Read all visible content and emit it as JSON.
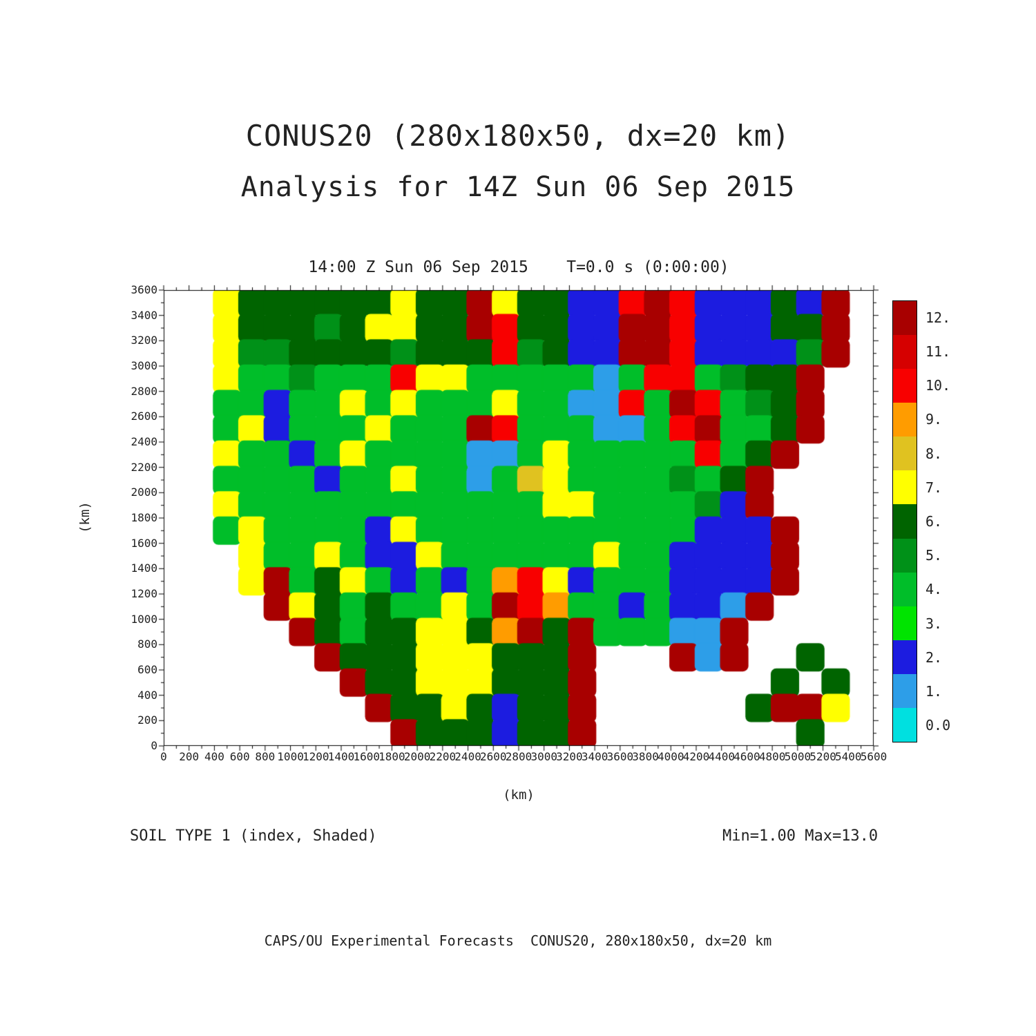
{
  "header": {
    "title_line1": "CONUS20 (280x180x50, dx=20 km)",
    "title_line2": "Analysis for 14Z Sun 06 Sep 2015"
  },
  "plot": {
    "title": "14:00 Z Sun 06 Sep 2015    T=0.0 s (0:00:00)",
    "xlabel": "(km)",
    "ylabel": "(km)",
    "x_ticks": [
      0,
      200,
      400,
      600,
      800,
      1000,
      1200,
      1400,
      1600,
      1800,
      2000,
      2200,
      2400,
      2600,
      2800,
      3000,
      3200,
      3400,
      3600,
      3800,
      4000,
      4200,
      4400,
      4600,
      4800,
      5000,
      5200,
      5400,
      5600
    ],
    "y_ticks": [
      0,
      200,
      400,
      600,
      800,
      1000,
      1200,
      1400,
      1600,
      1800,
      2000,
      2200,
      2400,
      2600,
      2800,
      3000,
      3200,
      3400,
      3600
    ]
  },
  "annotations": {
    "field_label": "SOIL TYPE 1 (index, Shaded)",
    "minmax": "Min=1.00 Max=13.0",
    "footer": "CAPS/OU Experimental Forecasts  CONUS20, 280x180x50, dx=20 km"
  },
  "chart_data": {
    "type": "heatmap",
    "title": "14:00 Z Sun 06 Sep 2015    T=0.0 s (0:00:00)",
    "field": "SOIL TYPE 1 (index, Shaded)",
    "xlabel": "(km)",
    "ylabel": "(km)",
    "xlim": [
      0,
      5600
    ],
    "ylim": [
      0,
      3600
    ],
    "min": 1.0,
    "max": 13.0,
    "levels": [
      0,
      1,
      2,
      3,
      4,
      5,
      6,
      7,
      8,
      9,
      10,
      11,
      12,
      13
    ],
    "colorbar_labels": [
      "12.",
      "11.",
      "10.",
      "9.",
      "8.",
      "7.",
      "6.",
      "5.",
      "4.",
      "3.",
      "2.",
      "1.",
      "0.0"
    ],
    "palette": [
      "#00E0E0",
      "#2D9EE8",
      "#1C1CE0",
      "#00E400",
      "#00BE29",
      "#009118",
      "#006400",
      "#FFFF00",
      "#E0C220",
      "#FF9C00",
      "#F80000",
      "#D60000",
      "#A80000"
    ],
    "grid_cell_km": 200,
    "grid_encoding": "rows top-to-bottom (y=3600..0), cols left-to-right (x=0..5600); chars: .=no data(white), 0-9=index value, A=10, B=11, C=12",
    "grid": [
      "..7666666766C76622ACA22262C.",
      "..7666567766CA6622CCA22266C.",
      "..75566665666A5622CCA22225C.",
      "..7445444A774444414AA4566C..",
      "..4424474744474411A4CA456C..",
      "..4724447444CA444114AC446C..",
      "..7442474444114744444A46C...",
      "..444424474414874444546C....",
      "..744444444444477444452C....",
      "..4744442744444444444222C...",
      "...744742274444447442222C...",
      "...7C467424249A724442222C...",
      "....C76464474CA94424221C....",
      ".....C64667769C6C44411C.....",
      "......C666777666C...C1C..6..",
      ".......C66777666C.......6.6.",
      "........C6676266C......6CC7.",
      ".........C666266C........6.."
    ]
  }
}
